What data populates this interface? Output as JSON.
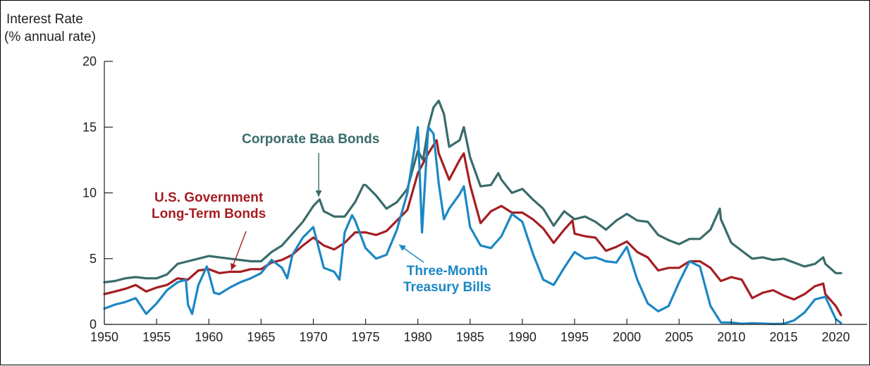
{
  "chart_data": {
    "type": "line",
    "ylabel": [
      "Interest Rate",
      "(% annual rate)"
    ],
    "xlim": [
      1950,
      2023
    ],
    "ylim": [
      0,
      20
    ],
    "x_ticks": [
      1950,
      1955,
      1960,
      1965,
      1970,
      1975,
      1980,
      1985,
      1990,
      1995,
      2000,
      2005,
      2010,
      2015,
      2020
    ],
    "y_ticks": [
      0,
      5,
      10,
      15,
      20
    ],
    "grid": false,
    "legend": "annotations",
    "series": [
      {
        "name": "Corporate Baa Bonds",
        "color": "#3a6b6b",
        "points": [
          [
            1950,
            3.2
          ],
          [
            1951,
            3.3
          ],
          [
            1952,
            3.5
          ],
          [
            1953,
            3.6
          ],
          [
            1954,
            3.5
          ],
          [
            1955,
            3.5
          ],
          [
            1956,
            3.8
          ],
          [
            1957,
            4.6
          ],
          [
            1958,
            4.8
          ],
          [
            1959,
            5.0
          ],
          [
            1960,
            5.2
          ],
          [
            1961,
            5.1
          ],
          [
            1962,
            5.0
          ],
          [
            1963,
            4.9
          ],
          [
            1964,
            4.8
          ],
          [
            1965,
            4.8
          ],
          [
            1966,
            5.5
          ],
          [
            1967,
            6.0
          ],
          [
            1968,
            6.9
          ],
          [
            1969,
            7.8
          ],
          [
            1970,
            9.0
          ],
          [
            1970.6,
            9.5
          ],
          [
            1971,
            8.6
          ],
          [
            1972,
            8.2
          ],
          [
            1973,
            8.2
          ],
          [
            1974,
            9.3
          ],
          [
            1974.8,
            10.6
          ],
          [
            1975,
            10.6
          ],
          [
            1976,
            9.8
          ],
          [
            1977,
            8.8
          ],
          [
            1978,
            9.3
          ],
          [
            1979,
            10.3
          ],
          [
            1980,
            13.2
          ],
          [
            1980.5,
            12.5
          ],
          [
            1981,
            15.0
          ],
          [
            1981.5,
            16.5
          ],
          [
            1982,
            17.0
          ],
          [
            1982.5,
            16.0
          ],
          [
            1983,
            13.5
          ],
          [
            1984,
            14.0
          ],
          [
            1984.4,
            15.0
          ],
          [
            1985,
            12.7
          ],
          [
            1986,
            10.5
          ],
          [
            1987,
            10.6
          ],
          [
            1987.7,
            11.5
          ],
          [
            1988,
            11.0
          ],
          [
            1989,
            10.0
          ],
          [
            1990,
            10.3
          ],
          [
            1991,
            9.5
          ],
          [
            1992,
            8.8
          ],
          [
            1993,
            7.5
          ],
          [
            1994,
            8.6
          ],
          [
            1995,
            8.0
          ],
          [
            1996,
            8.2
          ],
          [
            1997,
            7.8
          ],
          [
            1998,
            7.2
          ],
          [
            1999,
            7.9
          ],
          [
            2000,
            8.4
          ],
          [
            2001,
            7.9
          ],
          [
            2002,
            7.8
          ],
          [
            2003,
            6.8
          ],
          [
            2004,
            6.4
          ],
          [
            2005,
            6.1
          ],
          [
            2006,
            6.5
          ],
          [
            2007,
            6.5
          ],
          [
            2008,
            7.2
          ],
          [
            2008.9,
            8.8
          ],
          [
            2009,
            8.0
          ],
          [
            2010,
            6.2
          ],
          [
            2011,
            5.6
          ],
          [
            2012,
            5.0
          ],
          [
            2013,
            5.1
          ],
          [
            2014,
            4.9
          ],
          [
            2015,
            5.0
          ],
          [
            2016,
            4.7
          ],
          [
            2017,
            4.4
          ],
          [
            2018,
            4.6
          ],
          [
            2018.8,
            5.1
          ],
          [
            2019,
            4.6
          ],
          [
            2020,
            3.9
          ],
          [
            2020.5,
            3.9
          ]
        ]
      },
      {
        "name": "U.S. Government Long-Term Bonds",
        "color": "#a51e22",
        "points": [
          [
            1950,
            2.3
          ],
          [
            1951,
            2.5
          ],
          [
            1952,
            2.7
          ],
          [
            1953,
            3.0
          ],
          [
            1954,
            2.5
          ],
          [
            1955,
            2.8
          ],
          [
            1956,
            3.0
          ],
          [
            1957,
            3.5
          ],
          [
            1958,
            3.4
          ],
          [
            1959,
            4.1
          ],
          [
            1960,
            4.2
          ],
          [
            1961,
            3.9
          ],
          [
            1962,
            4.0
          ],
          [
            1963,
            4.0
          ],
          [
            1964,
            4.2
          ],
          [
            1965,
            4.2
          ],
          [
            1966,
            4.7
          ],
          [
            1967,
            4.9
          ],
          [
            1968,
            5.3
          ],
          [
            1969,
            6.0
          ],
          [
            1970,
            6.6
          ],
          [
            1971,
            6.0
          ],
          [
            1972,
            5.7
          ],
          [
            1973,
            6.2
          ],
          [
            1974,
            7.0
          ],
          [
            1975,
            7.0
          ],
          [
            1976,
            6.8
          ],
          [
            1977,
            7.1
          ],
          [
            1978,
            7.9
          ],
          [
            1979,
            8.7
          ],
          [
            1980,
            11.5
          ],
          [
            1981,
            13.0
          ],
          [
            1981.8,
            14.0
          ],
          [
            1982,
            13.0
          ],
          [
            1983,
            11.0
          ],
          [
            1984,
            12.5
          ],
          [
            1984.4,
            13.0
          ],
          [
            1985,
            10.6
          ],
          [
            1986,
            7.7
          ],
          [
            1987,
            8.6
          ],
          [
            1988,
            9.0
          ],
          [
            1989,
            8.5
          ],
          [
            1990,
            8.5
          ],
          [
            1991,
            8.0
          ],
          [
            1992,
            7.3
          ],
          [
            1993,
            6.2
          ],
          [
            1994,
            7.2
          ],
          [
            1994.8,
            7.9
          ],
          [
            1995,
            6.9
          ],
          [
            1996,
            6.7
          ],
          [
            1997,
            6.6
          ],
          [
            1998,
            5.6
          ],
          [
            1999,
            5.9
          ],
          [
            2000,
            6.3
          ],
          [
            2001,
            5.5
          ],
          [
            2002,
            5.1
          ],
          [
            2003,
            4.1
          ],
          [
            2004,
            4.3
          ],
          [
            2005,
            4.3
          ],
          [
            2006,
            4.8
          ],
          [
            2007,
            4.8
          ],
          [
            2008,
            4.3
          ],
          [
            2009,
            3.3
          ],
          [
            2010,
            3.6
          ],
          [
            2011,
            3.4
          ],
          [
            2012,
            2.0
          ],
          [
            2013,
            2.4
          ],
          [
            2014,
            2.6
          ],
          [
            2015,
            2.2
          ],
          [
            2016,
            1.9
          ],
          [
            2017,
            2.3
          ],
          [
            2018,
            2.9
          ],
          [
            2018.8,
            3.1
          ],
          [
            2019,
            2.3
          ],
          [
            2020,
            1.4
          ],
          [
            2020.5,
            0.7
          ]
        ]
      },
      {
        "name": "Three-Month Treasury Bills",
        "color": "#1b87c4",
        "points": [
          [
            1950,
            1.2
          ],
          [
            1951,
            1.5
          ],
          [
            1952,
            1.7
          ],
          [
            1953,
            2.0
          ],
          [
            1954,
            0.8
          ],
          [
            1955,
            1.6
          ],
          [
            1956,
            2.6
          ],
          [
            1957,
            3.2
          ],
          [
            1957.8,
            3.4
          ],
          [
            1958,
            1.5
          ],
          [
            1958.4,
            0.8
          ],
          [
            1959,
            3.0
          ],
          [
            1959.8,
            4.4
          ],
          [
            1960,
            3.9
          ],
          [
            1960.5,
            2.4
          ],
          [
            1961,
            2.3
          ],
          [
            1962,
            2.8
          ],
          [
            1963,
            3.2
          ],
          [
            1964,
            3.5
          ],
          [
            1965,
            3.9
          ],
          [
            1966,
            4.9
          ],
          [
            1967,
            4.3
          ],
          [
            1967.5,
            3.5
          ],
          [
            1968,
            5.3
          ],
          [
            1969,
            6.6
          ],
          [
            1970,
            7.4
          ],
          [
            1971,
            4.3
          ],
          [
            1972,
            4.0
          ],
          [
            1972.5,
            3.4
          ],
          [
            1973,
            7.0
          ],
          [
            1973.7,
            8.3
          ],
          [
            1974,
            7.9
          ],
          [
            1975,
            5.8
          ],
          [
            1976,
            5.0
          ],
          [
            1977,
            5.3
          ],
          [
            1978,
            7.2
          ],
          [
            1979,
            10.0
          ],
          [
            1980,
            15.0
          ],
          [
            1980.4,
            7.0
          ],
          [
            1981,
            15.0
          ],
          [
            1981.5,
            14.5
          ],
          [
            1982,
            10.7
          ],
          [
            1982.5,
            8.0
          ],
          [
            1983,
            8.8
          ],
          [
            1984,
            9.9
          ],
          [
            1984.4,
            10.5
          ],
          [
            1985,
            7.4
          ],
          [
            1986,
            6.0
          ],
          [
            1987,
            5.8
          ],
          [
            1988,
            6.7
          ],
          [
            1989,
            8.4
          ],
          [
            1990,
            7.8
          ],
          [
            1991,
            5.4
          ],
          [
            1992,
            3.4
          ],
          [
            1993,
            3.0
          ],
          [
            1994,
            4.3
          ],
          [
            1995,
            5.5
          ],
          [
            1996,
            5.0
          ],
          [
            1997,
            5.1
          ],
          [
            1998,
            4.8
          ],
          [
            1999,
            4.7
          ],
          [
            2000,
            5.9
          ],
          [
            2001,
            3.4
          ],
          [
            2002,
            1.6
          ],
          [
            2003,
            1.0
          ],
          [
            2004,
            1.4
          ],
          [
            2005,
            3.2
          ],
          [
            2006,
            4.8
          ],
          [
            2007,
            4.4
          ],
          [
            2008,
            1.4
          ],
          [
            2009,
            0.15
          ],
          [
            2010,
            0.14
          ],
          [
            2011,
            0.05
          ],
          [
            2012,
            0.09
          ],
          [
            2013,
            0.06
          ],
          [
            2014,
            0.03
          ],
          [
            2015,
            0.05
          ],
          [
            2016,
            0.3
          ],
          [
            2017,
            0.9
          ],
          [
            2018,
            1.9
          ],
          [
            2019,
            2.1
          ],
          [
            2020,
            0.4
          ],
          [
            2020.5,
            0.1
          ]
        ]
      }
    ],
    "annotations": [
      {
        "text": [
          "Corporate Baa Bonds"
        ],
        "series": 0,
        "color": "#3a6b6b"
      },
      {
        "text": [
          "U.S. Government",
          "Long-Term Bonds"
        ],
        "series": 1,
        "color": "#a51e22"
      },
      {
        "text": [
          "Three-Month",
          "Treasury Bills"
        ],
        "series": 2,
        "color": "#1b87c4"
      }
    ]
  }
}
